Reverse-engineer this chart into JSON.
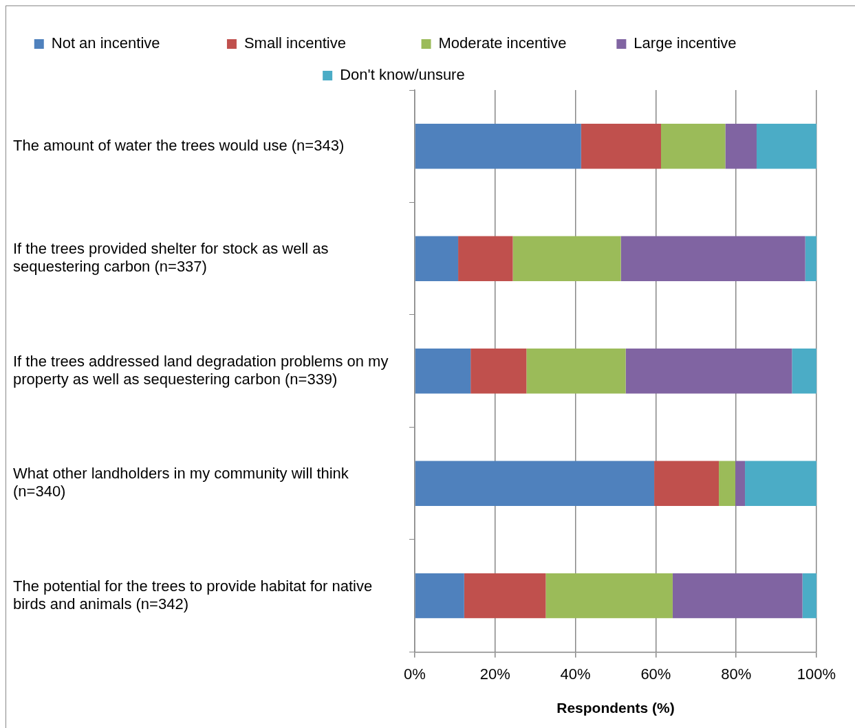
{
  "chart_data": {
    "type": "bar",
    "orientation": "horizontal",
    "stacked": true,
    "xlabel": "Respondents (%)",
    "categories": [
      "The amount of water the trees would use (n=343)",
      "If the trees provided shelter for stock as well as sequestering carbon (n=337)",
      "If the trees addressed land degradation problems on my property as well as sequestering carbon (n=339)",
      "What other landholders in my community will think (n=340)",
      "The potential for the trees to provide habitat for native birds and animals (n=342)"
    ],
    "series": [
      {
        "name": "Not an incentive",
        "color": "#4f81bd",
        "values": [
          41.4,
          10.8,
          13.9,
          59.6,
          12.3
        ]
      },
      {
        "name": "Small incentive",
        "color": "#c0504d",
        "values": [
          19.9,
          13.6,
          13.9,
          16.1,
          20.3
        ]
      },
      {
        "name": "Moderate incentive",
        "color": "#9bbb59",
        "values": [
          16.0,
          26.9,
          24.7,
          4.1,
          31.6
        ]
      },
      {
        "name": "Large incentive",
        "color": "#8064a2",
        "values": [
          7.8,
          45.9,
          41.4,
          2.4,
          32.3
        ]
      },
      {
        "name": "Don't know/unsure",
        "color": "#4bacc6",
        "values": [
          14.9,
          2.8,
          6.1,
          17.8,
          3.5
        ]
      }
    ],
    "xlim": [
      0,
      100
    ],
    "xticks": [
      {
        "value": 0,
        "label": "0%"
      },
      {
        "value": 20,
        "label": "20%"
      },
      {
        "value": 40,
        "label": "40%"
      },
      {
        "value": 60,
        "label": "60%"
      },
      {
        "value": 80,
        "label": "80%"
      },
      {
        "value": 100,
        "label": "100%"
      }
    ],
    "grid": "x",
    "legend": "top"
  }
}
